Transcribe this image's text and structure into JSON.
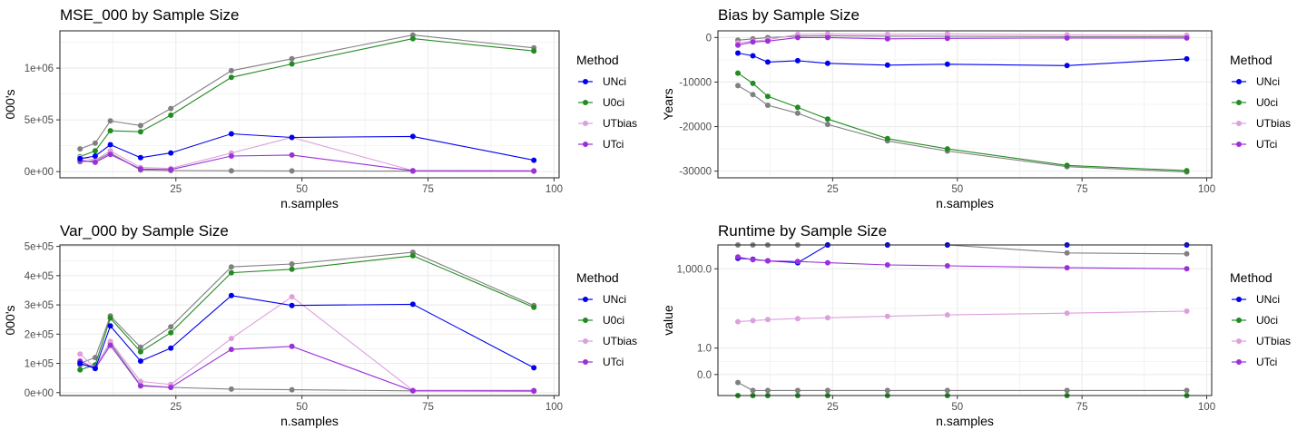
{
  "colors": {
    "UNci": "#0000ee",
    "U0ci": "#228b22",
    "UTbias": "#dda0dd",
    "UTci": "#9b30d9",
    "extra": "#808080",
    "grid": "#ebebeb",
    "panel_border": "#333333",
    "text": "#222222",
    "tick_text": "#4d4d4d"
  },
  "legend": {
    "title": "Method",
    "entries": [
      "UNci",
      "U0ci",
      "UTbias",
      "UTci"
    ]
  },
  "chart_data": [
    {
      "id": "mse",
      "type": "line",
      "title": "MSE_000 by Sample Size",
      "xlabel": "n.samples",
      "ylabel": "000's",
      "xlim": [
        2,
        101
      ],
      "ylim": [
        -60000,
        1360000
      ],
      "x_ticks": [
        25,
        50,
        75,
        100
      ],
      "x_tick_labels": [
        "25",
        "50",
        "75",
        "100"
      ],
      "y_ticks": [
        0,
        500000,
        1000000
      ],
      "y_tick_labels": [
        "0e+00",
        "5e+05",
        "1e+06"
      ],
      "x": [
        6,
        9,
        12,
        18,
        24,
        36,
        48,
        72,
        96
      ],
      "series": [
        {
          "key": "extra_top",
          "color_key": "extra",
          "values": [
            220000,
            275000,
            490000,
            445000,
            610000,
            975000,
            1090000,
            1320000,
            1195000
          ]
        },
        {
          "key": "extra_low",
          "color_key": "extra",
          "values": [
            95000,
            105000,
            180000,
            15000,
            10000,
            8000,
            7000,
            5000,
            4000
          ]
        },
        {
          "key": "U0ci",
          "color_key": "U0ci",
          "values": [
            145000,
            200000,
            395000,
            385000,
            545000,
            910000,
            1040000,
            1285000,
            1165000
          ]
        },
        {
          "key": "UTbias",
          "color_key": "UTbias",
          "values": [
            140000,
            110000,
            200000,
            40000,
            30000,
            180000,
            330000,
            10000,
            8000
          ]
        },
        {
          "key": "UTci",
          "color_key": "UTci",
          "values": [
            110000,
            90000,
            165000,
            25000,
            20000,
            150000,
            160000,
            8000,
            7000
          ]
        },
        {
          "key": "UNci",
          "color_key": "UNci",
          "values": [
            125000,
            150000,
            260000,
            135000,
            180000,
            365000,
            330000,
            340000,
            110000
          ]
        }
      ]
    },
    {
      "id": "bias",
      "type": "line",
      "title": "Bias by Sample Size",
      "xlabel": "n.samples",
      "ylabel": "Years",
      "xlim": [
        2,
        101
      ],
      "ylim": [
        -31500,
        1500
      ],
      "x_ticks": [
        25,
        50,
        75,
        100
      ],
      "x_tick_labels": [
        "25",
        "50",
        "75",
        "100"
      ],
      "y_ticks": [
        -30000,
        -20000,
        -10000,
        0
      ],
      "y_tick_labels": [
        "-30000",
        "-20000",
        "-10000",
        "0"
      ],
      "x": [
        6,
        9,
        12,
        18,
        24,
        36,
        48,
        72,
        96
      ],
      "series": [
        {
          "key": "extra_low",
          "color_key": "extra",
          "values": [
            -10800,
            -12800,
            -15200,
            -17000,
            -19500,
            -23200,
            -25500,
            -29000,
            -30200
          ]
        },
        {
          "key": "U0ci",
          "color_key": "U0ci",
          "values": [
            -8000,
            -10300,
            -13200,
            -15700,
            -18300,
            -22700,
            -25000,
            -28700,
            -29900
          ]
        },
        {
          "key": "extra_top",
          "color_key": "extra",
          "values": [
            -600,
            -300,
            0,
            300,
            400,
            300,
            300,
            200,
            200
          ]
        },
        {
          "key": "UTbias",
          "color_key": "UTbias",
          "values": [
            -1200,
            -800,
            -500,
            700,
            800,
            700,
            800,
            600,
            500
          ]
        },
        {
          "key": "UTci",
          "color_key": "UTci",
          "values": [
            -1700,
            -1000,
            -800,
            0,
            0,
            -300,
            -200,
            -100,
            -100
          ]
        },
        {
          "key": "UNci",
          "color_key": "UNci",
          "values": [
            -3500,
            -4100,
            -5500,
            -5200,
            -5800,
            -6200,
            -6000,
            -6300,
            -4800
          ]
        }
      ]
    },
    {
      "id": "var",
      "type": "line",
      "title": "Var_000 by Sample Size",
      "xlabel": "n.samples",
      "ylabel": "000's",
      "xlim": [
        2,
        101
      ],
      "ylim": [
        -10000,
        505000
      ],
      "x_ticks": [
        25,
        50,
        75,
        100
      ],
      "x_tick_labels": [
        "25",
        "50",
        "75",
        "100"
      ],
      "y_ticks": [
        0,
        100000,
        200000,
        300000,
        400000,
        500000
      ],
      "y_tick_labels": [
        "0e+00",
        "1e+05",
        "2e+05",
        "3e+05",
        "4e+05",
        "5e+05"
      ],
      "x": [
        6,
        9,
        12,
        18,
        24,
        36,
        48,
        72,
        96
      ],
      "series": [
        {
          "key": "extra_top",
          "color_key": "extra",
          "values": [
            100000,
            120000,
            262000,
            155000,
            225000,
            430000,
            440000,
            480000,
            298000
          ]
        },
        {
          "key": "extra_low",
          "color_key": "extra",
          "values": [
            95000,
            90000,
            170000,
            25000,
            18000,
            12000,
            10000,
            6000,
            5000
          ]
        },
        {
          "key": "U0ci",
          "color_key": "U0ci",
          "values": [
            78000,
            95000,
            255000,
            140000,
            205000,
            410000,
            422000,
            468000,
            292000
          ]
        },
        {
          "key": "UTbias",
          "color_key": "UTbias",
          "values": [
            132000,
            85000,
            175000,
            38000,
            28000,
            185000,
            328000,
            8000,
            8000
          ]
        },
        {
          "key": "UTci",
          "color_key": "UTci",
          "values": [
            108000,
            83000,
            162000,
            23000,
            18000,
            148000,
            158000,
            6000,
            6000
          ]
        },
        {
          "key": "UNci",
          "color_key": "UNci",
          "values": [
            100000,
            82000,
            228000,
            108000,
            152000,
            332000,
            298000,
            302000,
            85000
          ]
        }
      ]
    },
    {
      "id": "runtime",
      "type": "line",
      "log_y": true,
      "title": "Runtime by Sample Size",
      "xlabel": "n.samples",
      "ylabel": "value",
      "xlim": [
        2,
        101
      ],
      "ylim": [
        0.016,
        8000
      ],
      "x_ticks": [
        25,
        50,
        75,
        100
      ],
      "x_tick_labels": [
        "25",
        "50",
        "75",
        "100"
      ],
      "y_ticks": [
        0.1,
        1,
        1000
      ],
      "y_tick_labels": [
        "0.0",
        "1.0",
        "1,000.0"
      ],
      "x": [
        6,
        9,
        12,
        18,
        24,
        36,
        48,
        72,
        96
      ],
      "series": [
        {
          "key": "extra_top",
          "color_key": "extra",
          "values": [
            8000,
            8000,
            8000,
            8000,
            8000,
            8000,
            8000,
            4000,
            3700
          ]
        },
        {
          "key": "UNci",
          "color_key": "UNci",
          "values": [
            2500,
            2300,
            2000,
            1700,
            8000,
            8000,
            8000,
            8000,
            8000
          ]
        },
        {
          "key": "UTci",
          "color_key": "UTci",
          "values": [
            2800,
            2200,
            2000,
            1900,
            1700,
            1400,
            1300,
            1100,
            1000
          ]
        },
        {
          "key": "UTbias",
          "color_key": "UTbias",
          "values": [
            10,
            11,
            12,
            13,
            14,
            16,
            18,
            21,
            25
          ]
        },
        {
          "key": "extra_low",
          "color_key": "extra",
          "values": [
            0.05,
            0.025,
            0.025,
            0.025,
            0.025,
            0.025,
            0.025,
            0.025,
            0.025
          ]
        },
        {
          "key": "U0ci",
          "color_key": "U0ci",
          "values": [
            0.016,
            0.016,
            0.016,
            0.016,
            0.016,
            0.016,
            0.016,
            0.016,
            0.016
          ]
        }
      ]
    }
  ]
}
